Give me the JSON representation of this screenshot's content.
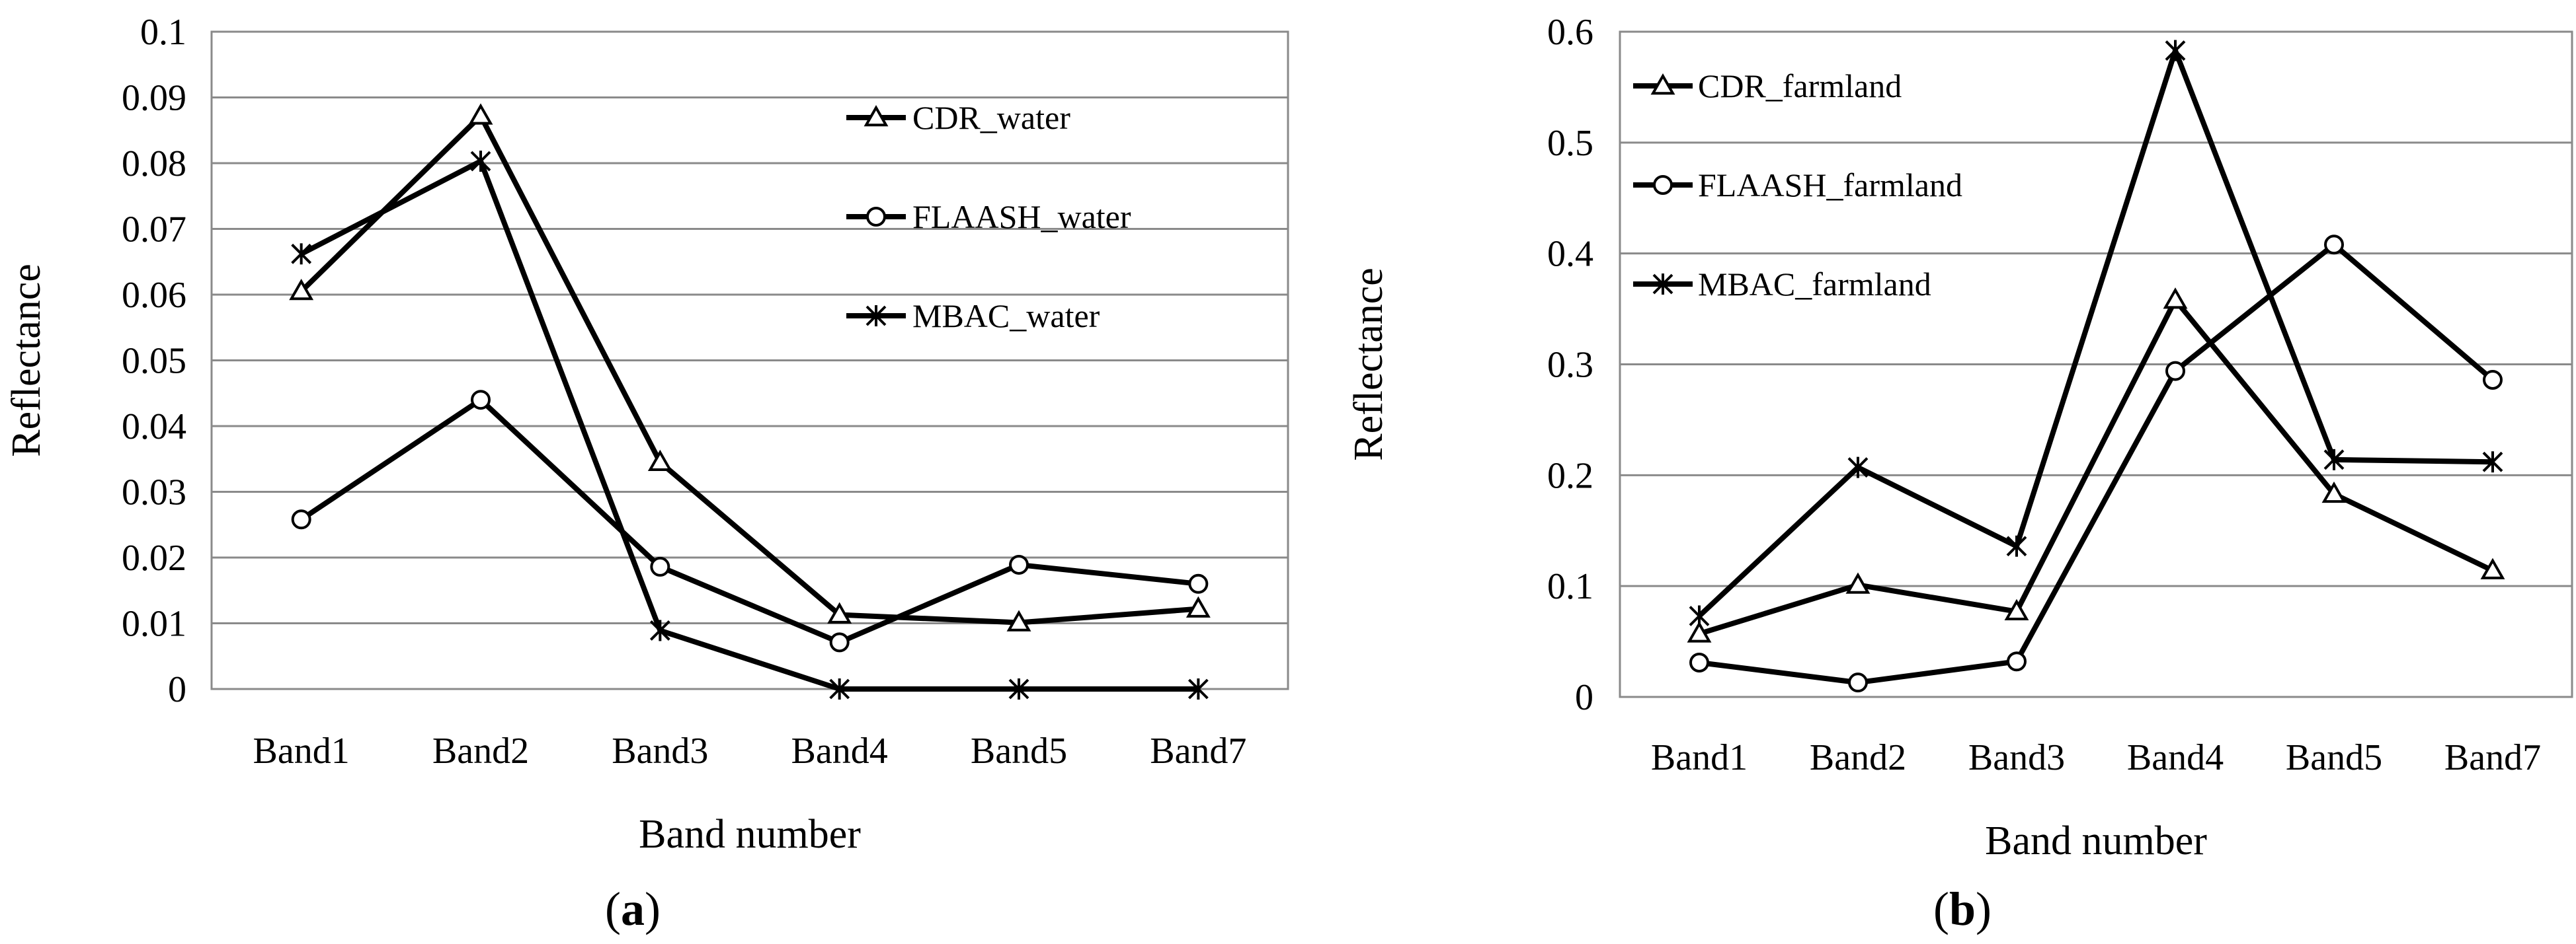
{
  "chart_data": [
    {
      "type": "line",
      "caption": "a",
      "categories": [
        "Band1",
        "Band2",
        "Band3",
        "Band4",
        "Band5",
        "Band7"
      ],
      "xlabel": "Band number",
      "ylabel": "Reflectance",
      "ylim": [
        0,
        0.1
      ],
      "yticks": [
        0,
        0.01,
        0.02,
        0.03,
        0.04,
        0.05,
        0.06,
        0.07,
        0.08,
        0.09,
        0.1
      ],
      "ytick_labels": [
        "0",
        "0.01",
        "0.02",
        "0.03",
        "0.04",
        "0.05",
        "0.06",
        "0.07",
        "0.08",
        "0.09",
        "0.1"
      ],
      "grid": true,
      "legend_position": "top-right",
      "series": [
        {
          "name": "CDR_water",
          "marker": "triangle",
          "values": [
            0.0605,
            0.0872,
            0.0345,
            0.0113,
            0.0101,
            0.0122
          ]
        },
        {
          "name": "FLAASH_water",
          "marker": "circle",
          "values": [
            0.0258,
            0.044,
            0.0186,
            0.0071,
            0.0189,
            0.016
          ]
        },
        {
          "name": "MBAC_water",
          "marker": "star",
          "values": [
            0.0662,
            0.0803,
            0.0089,
            0.0,
            0.0,
            0.0
          ]
        }
      ]
    },
    {
      "type": "line",
      "caption": "b",
      "categories": [
        "Band1",
        "Band2",
        "Band3",
        "Band4",
        "Band5",
        "Band7"
      ],
      "xlabel": "Band number",
      "ylabel": "Reflectance",
      "ylim": [
        0,
        0.6
      ],
      "yticks": [
        0,
        0.1,
        0.2,
        0.3,
        0.4,
        0.5,
        0.6
      ],
      "ytick_labels": [
        "0",
        "0.1",
        "0.2",
        "0.3",
        "0.4",
        "0.5",
        "0.6"
      ],
      "grid": true,
      "legend_position": "top-left",
      "series": [
        {
          "name": "CDR_farmland",
          "marker": "triangle",
          "values": [
            0.057,
            0.101,
            0.077,
            0.358,
            0.183,
            0.114
          ]
        },
        {
          "name": "FLAASH_farmland",
          "marker": "circle",
          "values": [
            0.031,
            0.013,
            0.032,
            0.294,
            0.408,
            0.286
          ]
        },
        {
          "name": "MBAC_farmland",
          "marker": "star",
          "values": [
            0.073,
            0.207,
            0.136,
            0.583,
            0.214,
            0.212
          ]
        }
      ]
    }
  ]
}
